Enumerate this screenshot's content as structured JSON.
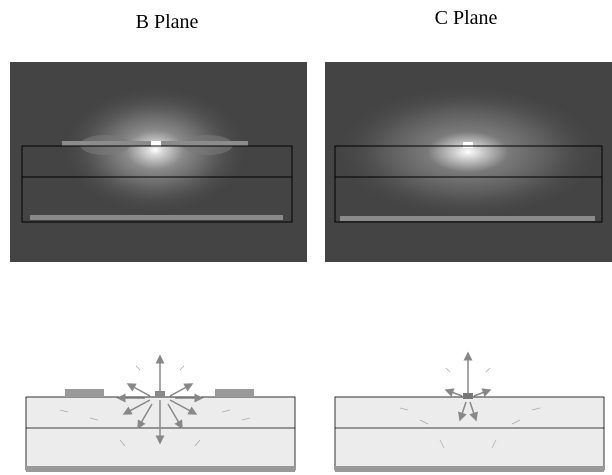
{
  "panels": [
    {
      "title": "B Plane"
    },
    {
      "title": "C Plane"
    }
  ]
}
